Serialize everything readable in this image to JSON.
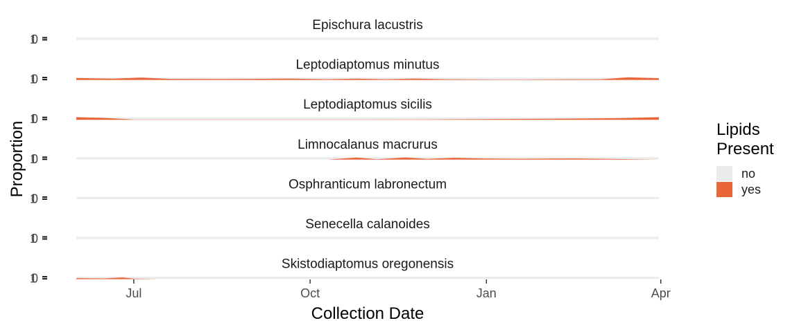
{
  "chart_data": {
    "type": "area",
    "xlabel": "Collection Date",
    "ylabel": "Proportion",
    "x_ticks": [
      "Jul",
      "Oct",
      "Jan",
      "Apr"
    ],
    "x_range": [
      "2019-06-01",
      "2020-03-31"
    ],
    "x_tick_dates": [
      "2019-07-01",
      "2019-10-01",
      "2020-01-01",
      "2020-04-01"
    ],
    "y_ticks": [
      "0",
      "1"
    ],
    "ylim": [
      0,
      1
    ],
    "stacked": true,
    "legend": {
      "title_lines": [
        "Lipids",
        "Present"
      ],
      "position": "right",
      "entries": [
        {
          "label": "no",
          "color": "#EBEBEB"
        },
        {
          "label": "yes",
          "color": "#E8663A"
        }
      ]
    },
    "colors": {
      "no": "#EBEBEB",
      "yes": "#E8663A"
    },
    "grid": false,
    "panels": [
      {
        "title": "Epischura lacustris",
        "x": [
          "2019-06-01",
          "2019-07-01",
          "2019-08-01",
          "2019-09-01",
          "2019-10-01",
          "2019-11-01",
          "2019-12-01",
          "2020-01-01",
          "2020-02-01",
          "2020-03-01",
          "2020-03-31"
        ],
        "yes": [
          0,
          0,
          0,
          0,
          0,
          0,
          0,
          0,
          0,
          0,
          0
        ]
      },
      {
        "title": "Leptodiaptomus minutus",
        "x": [
          "2019-06-01",
          "2019-06-20",
          "2019-07-05",
          "2019-07-20",
          "2019-08-15",
          "2019-09-01",
          "2019-09-20",
          "2019-10-10",
          "2019-10-25",
          "2019-11-10",
          "2019-11-25",
          "2019-12-10",
          "2020-01-10",
          "2020-02-10",
          "2020-03-01",
          "2020-03-15",
          "2020-03-31"
        ],
        "yes": [
          0.55,
          0.35,
          0.7,
          0.3,
          0.25,
          0.3,
          0.4,
          0.2,
          0.35,
          0.2,
          0.4,
          0.2,
          0.1,
          0.15,
          0.2,
          0.75,
          0.5
        ]
      },
      {
        "title": "Leptodiaptomus sicilis",
        "x": [
          "2019-06-01",
          "2019-06-15",
          "2019-07-01",
          "2019-08-01",
          "2019-09-01",
          "2019-10-01",
          "2019-11-01",
          "2019-12-01",
          "2020-01-01",
          "2020-02-01",
          "2020-02-20",
          "2020-03-10",
          "2020-03-31"
        ],
        "yes": [
          0.75,
          0.55,
          0.05,
          0.05,
          0.05,
          0.05,
          0.05,
          0.1,
          0.2,
          0.3,
          0.35,
          0.45,
          0.75
        ]
      },
      {
        "title": "Limnocalanus macrurus",
        "x": [
          "2019-06-01",
          "2019-10-10",
          "2019-10-25",
          "2019-11-05",
          "2019-11-20",
          "2019-12-01",
          "2019-12-15",
          "2020-01-01",
          "2020-01-20",
          "2020-02-15",
          "2020-03-01",
          "2020-03-20",
          "2020-03-31"
        ],
        "yes": [
          0,
          0,
          0.6,
          0.1,
          0.65,
          0.2,
          0.55,
          0.3,
          0.25,
          0.35,
          0.25,
          0.1,
          0
        ]
      },
      {
        "title": "Osphranticum labronectum",
        "x": [
          "2019-06-01",
          "2019-07-01",
          "2019-08-01",
          "2019-09-01",
          "2019-10-01",
          "2019-11-01",
          "2019-12-01",
          "2020-01-01",
          "2020-02-01",
          "2020-03-01",
          "2020-03-31"
        ],
        "yes": [
          0,
          0,
          0,
          0,
          0,
          0,
          0,
          0,
          0,
          0,
          0
        ]
      },
      {
        "title": "Senecella calanoides",
        "x": [
          "2019-06-01",
          "2019-07-01",
          "2019-08-01",
          "2019-09-01",
          "2019-10-01",
          "2019-11-01",
          "2019-12-01",
          "2020-01-01",
          "2020-02-01",
          "2020-03-01",
          "2020-03-31"
        ],
        "yes": [
          0,
          0,
          0,
          0,
          0,
          0,
          0,
          0,
          0,
          0,
          0
        ]
      },
      {
        "title": "Skistodiaptomus oregonensis",
        "x": [
          "2019-06-01",
          "2019-06-15",
          "2019-06-25",
          "2019-07-01",
          "2019-07-15",
          "2019-08-01",
          "2019-09-01",
          "2019-10-01",
          "2019-11-01",
          "2019-12-01",
          "2020-01-01",
          "2020-02-01",
          "2020-03-01",
          "2020-03-31"
        ],
        "yes": [
          0.3,
          0.2,
          0.5,
          0.15,
          0,
          0,
          0,
          0,
          0,
          0,
          0,
          0,
          0,
          0
        ]
      }
    ]
  }
}
